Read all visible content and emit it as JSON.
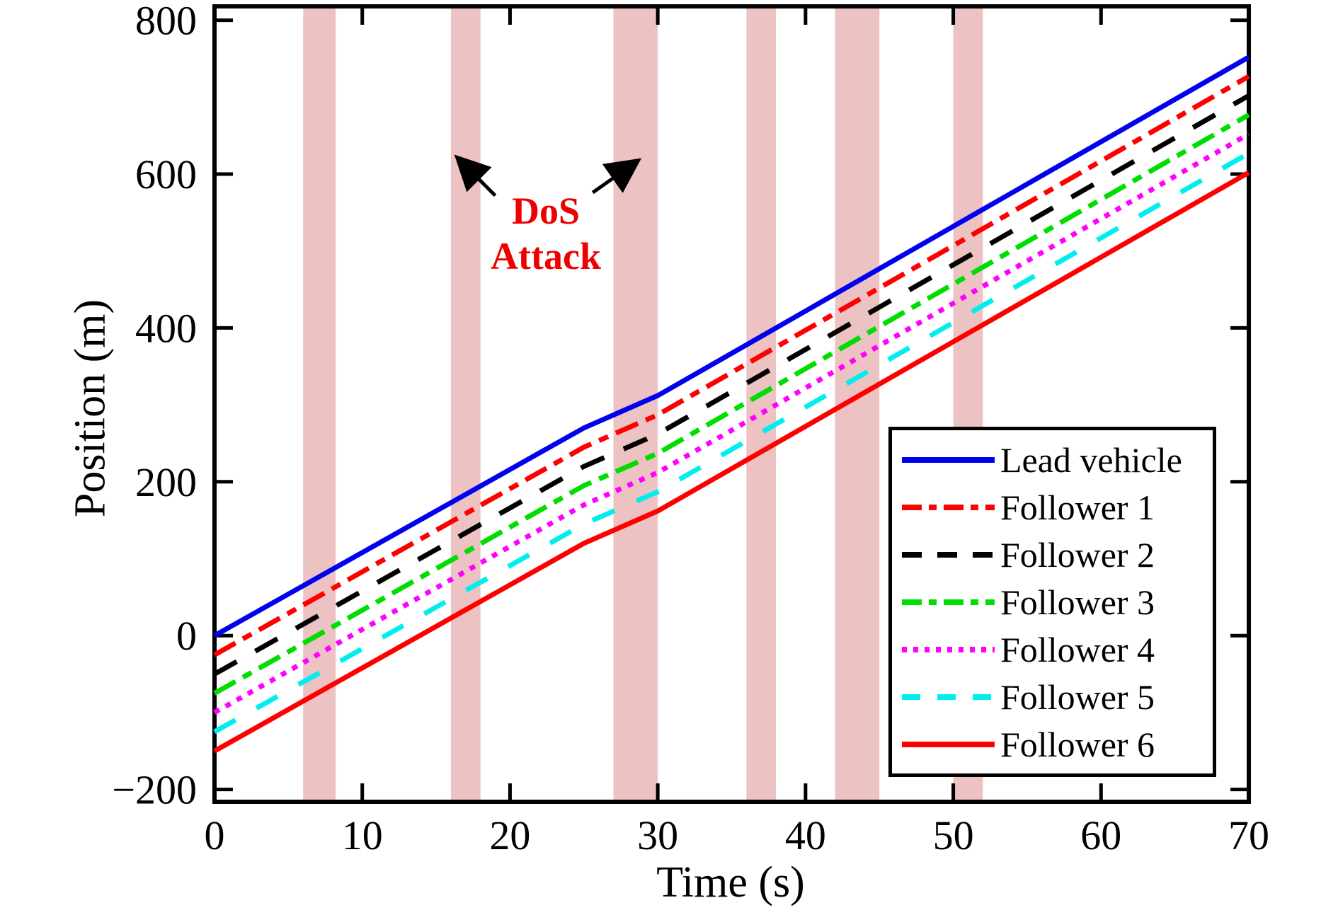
{
  "figure": {
    "background": "#FFFFFF"
  },
  "chart_data": {
    "type": "line",
    "title": "",
    "xlabel": "Time (s)",
    "ylabel": "Position (m)",
    "xlim": [
      0,
      70
    ],
    "ylim": [
      -200,
      800
    ],
    "ylim_display": [
      -216,
      818
    ],
    "xticks": [
      0,
      10,
      20,
      30,
      40,
      50,
      60,
      70
    ],
    "yticks": [
      -200,
      0,
      200,
      400,
      600,
      800
    ],
    "grid": "off",
    "legend_position": "lower right",
    "x": [
      0,
      5,
      10,
      15,
      20,
      25,
      30,
      35,
      40,
      45,
      50,
      55,
      60,
      65,
      70
    ],
    "series": [
      {
        "name": "Lead vehicle",
        "color": "#0000EE",
        "style": "solid",
        "values": [
          0,
          54,
          108,
          162,
          216,
          270,
          312,
          367,
          422,
          477,
          532,
          587,
          642,
          697,
          752
        ]
      },
      {
        "name": "Follower 1",
        "color": "#FF0000",
        "style": "dashdot",
        "values": [
          -25,
          29,
          83,
          137,
          191,
          245,
          287,
          342,
          397,
          452,
          507,
          562,
          617,
          672,
          727
        ]
      },
      {
        "name": "Follower 2",
        "color": "#000000",
        "style": "dashed",
        "values": [
          -50,
          4,
          58,
          112,
          166,
          220,
          262,
          317,
          372,
          427,
          482,
          537,
          592,
          647,
          702
        ]
      },
      {
        "name": "Follower 3",
        "color": "#00DD00",
        "style": "dashdot",
        "values": [
          -75,
          -21,
          33,
          87,
          141,
          195,
          237,
          292,
          347,
          402,
          457,
          512,
          567,
          622,
          677
        ]
      },
      {
        "name": "Follower 4",
        "color": "#FF00FF",
        "style": "dotted",
        "values": [
          -100,
          -46,
          8,
          62,
          116,
          170,
          212,
          267,
          322,
          377,
          432,
          487,
          542,
          597,
          652
        ]
      },
      {
        "name": "Follower 5",
        "color": "#00EEEE",
        "style": "dashed2",
        "values": [
          -125,
          -71,
          -17,
          37,
          91,
          145,
          187,
          242,
          297,
          352,
          407,
          462,
          517,
          572,
          627
        ]
      },
      {
        "name": "Follower 6",
        "color": "#FF0000",
        "style": "solid",
        "values": [
          -150,
          -96,
          -42,
          12,
          66,
          120,
          162,
          217,
          272,
          327,
          382,
          437,
          492,
          547,
          602
        ]
      }
    ],
    "attack_bands": {
      "color": "#ECC2C2",
      "intervals": [
        [
          6,
          8.2
        ],
        [
          16,
          18
        ],
        [
          27,
          30
        ],
        [
          36,
          38
        ],
        [
          42,
          45
        ],
        [
          50,
          52
        ]
      ]
    },
    "annotation": {
      "line1": "DoS",
      "line2": "Attack",
      "color": "#EE0000",
      "arrows": [
        {
          "from_t": 19.0,
          "from_v": 572,
          "to_t": 16.4,
          "to_v": 622
        },
        {
          "from_t": 25.6,
          "from_v": 576,
          "to_t": 28.7,
          "to_v": 618
        }
      ]
    }
  }
}
